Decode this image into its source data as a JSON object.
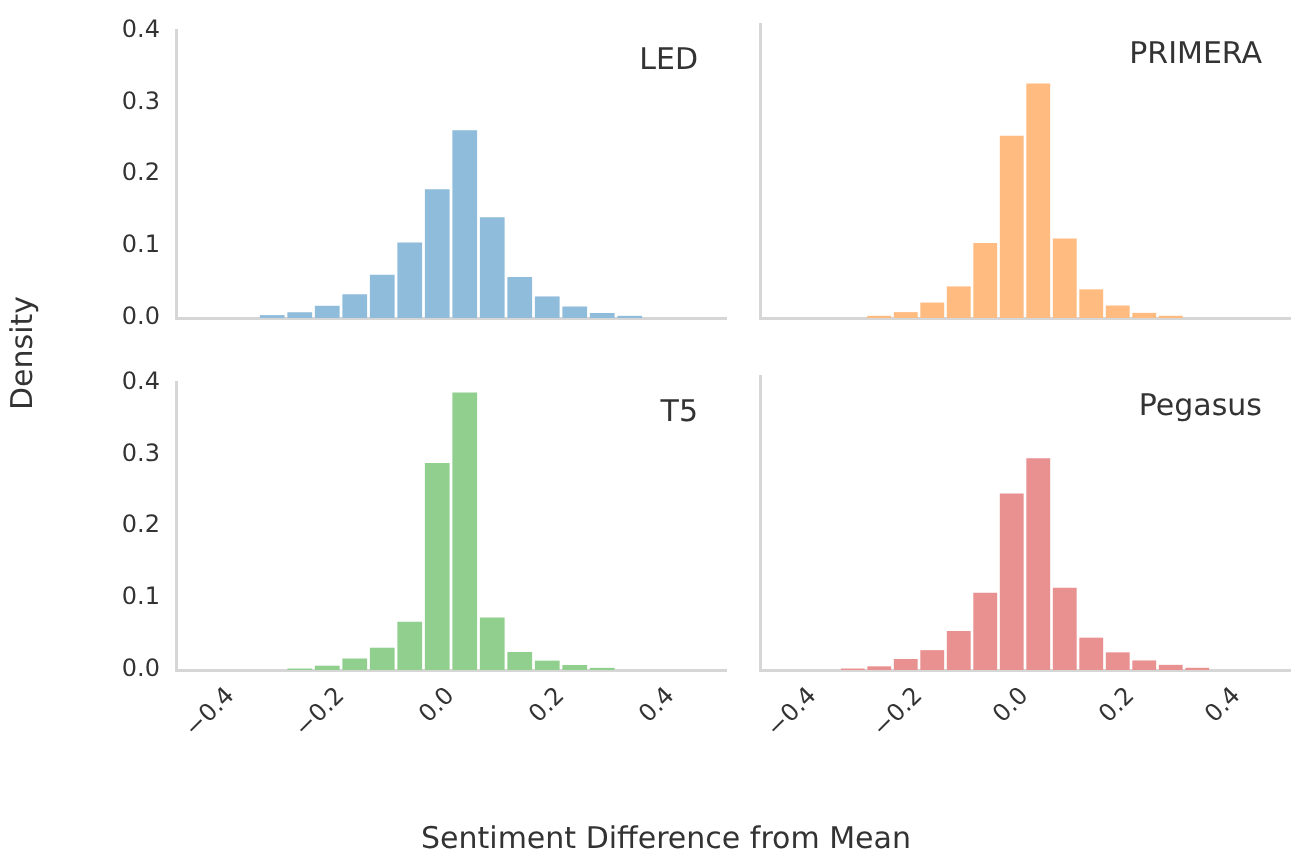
{
  "chart_data": [
    {
      "type": "histogram",
      "title": "LED",
      "ylabel": "Density",
      "color": "#8fbcdb",
      "bins": [
        -0.35,
        -0.3,
        -0.25,
        -0.2,
        -0.15,
        -0.1,
        -0.05,
        0,
        0.05,
        0.1,
        0.15,
        0.2,
        0.25,
        0.3,
        0.35
      ],
      "values": [
        0.004,
        0.008,
        0.017,
        0.033,
        0.06,
        0.105,
        0.179,
        0.261,
        0.14,
        0.057,
        0.03,
        0.016,
        0.007,
        0.003
      ],
      "xlim": [
        -0.5,
        0.5
      ],
      "ylim": [
        0,
        0.4
      ],
      "yticks": [
        {
          "value": 0,
          "label": "0.0"
        },
        0.1,
        0.2,
        0.3,
        0.4
      ],
      "tick_labels": "y",
      "grid": false
    },
    {
      "type": "histogram",
      "title": "PRIMERA",
      "color": "#ffbb80",
      "bins": [
        -0.3,
        -0.25,
        -0.2,
        -0.15,
        -0.1,
        -0.05,
        0,
        0.05,
        0.1,
        0.15,
        0.2,
        0.25,
        0.3
      ],
      "values": [
        0.003,
        0.008,
        0.021,
        0.043,
        0.102,
        0.248,
        0.319,
        0.108,
        0.039,
        0.017,
        0.007,
        0.003
      ],
      "xlim": [
        -0.5,
        0.5
      ],
      "ylim": [
        0,
        0.4
      ],
      "tick_labels": false,
      "grid": false
    },
    {
      "type": "histogram",
      "title": "T5",
      "xlabel": "Sentiment Difference from Mean",
      "color": "#90cf8e",
      "bins": [
        -0.3,
        -0.25,
        -0.2,
        -0.15,
        -0.1,
        -0.05,
        0,
        0.05,
        0.1,
        0.15,
        0.2,
        0.25,
        0.3
      ],
      "values": [
        0.002,
        0.006,
        0.016,
        0.031,
        0.067,
        0.288,
        0.386,
        0.073,
        0.025,
        0.013,
        0.007,
        0.003
      ],
      "xlim": [
        -0.5,
        0.5
      ],
      "xticks": [
        {
          "value": -0.4,
          "label": "−0.4"
        },
        {
          "value": -0.2,
          "label": "−0.2"
        },
        {
          "value": 0,
          "label": "0.0"
        },
        {
          "value": 0.2,
          "label": "0.2"
        },
        {
          "value": 0.4,
          "label": "0.4"
        }
      ],
      "ylim": [
        0,
        0.4
      ],
      "yticks": [
        {
          "value": 0,
          "label": "0.0"
        },
        0.1,
        0.2,
        0.3,
        0.4
      ],
      "grid": false
    },
    {
      "type": "histogram",
      "title": "Pegasus",
      "color": "#e99191",
      "bins": [
        -0.35,
        -0.3,
        -0.25,
        -0.2,
        -0.15,
        -0.1,
        -0.05,
        0,
        0.05,
        0.1,
        0.15,
        0.2,
        0.25,
        0.3,
        0.35
      ],
      "values": [
        0.002,
        0.005,
        0.015,
        0.027,
        0.053,
        0.105,
        0.24,
        0.288,
        0.112,
        0.044,
        0.024,
        0.013,
        0.007,
        0.003
      ],
      "xlim": [
        -0.5,
        0.5
      ],
      "xticks": [
        {
          "value": -0.4,
          "label": "−0.4"
        },
        {
          "value": -0.2,
          "label": "−0.2"
        },
        {
          "value": 0,
          "label": "0.0"
        },
        {
          "value": 0.2,
          "label": "0.2"
        },
        {
          "value": 0.4,
          "label": "0.4"
        }
      ],
      "ylim": [
        0,
        0.4
      ],
      "tick_labels": "x",
      "grid": false
    }
  ]
}
